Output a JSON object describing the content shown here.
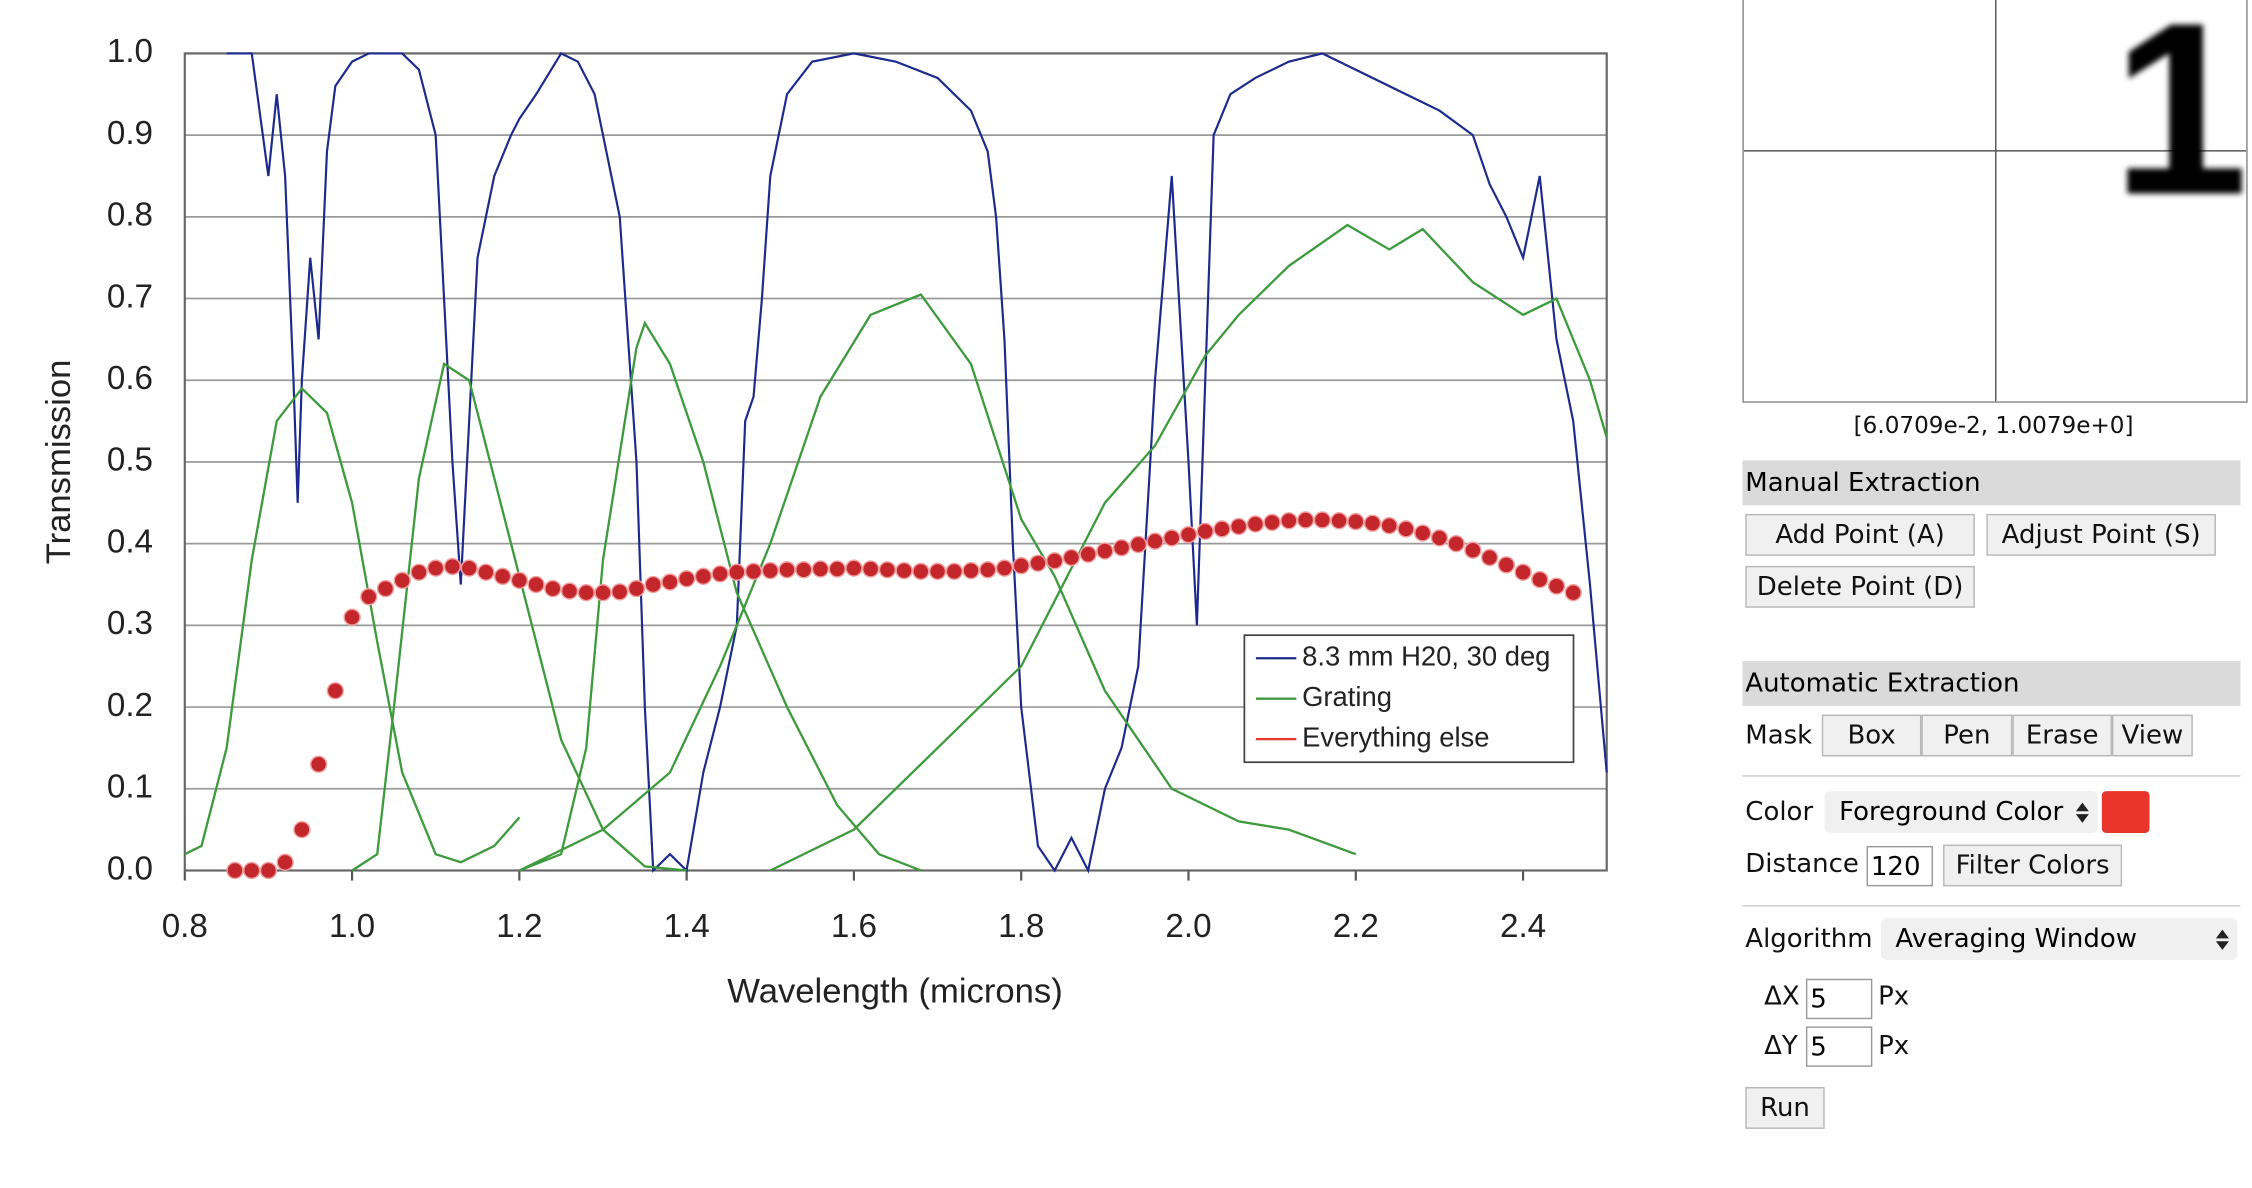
{
  "chart_data": {
    "type": "line",
    "xlabel": "Wavelength (microns)",
    "ylabel": "Transmission",
    "xlim": [
      0.8,
      2.5
    ],
    "ylim": [
      0,
      1
    ],
    "xticks": [
      0.8,
      {
        "value": 1,
        "label": "1.0"
      },
      1.2,
      1.4,
      1.6,
      1.8,
      {
        "value": 2,
        "label": "2.0"
      },
      2.2,
      2.4
    ],
    "yticks": [
      {
        "value": 0,
        "label": "0.0"
      },
      0.1,
      0.2,
      0.3,
      0.4,
      0.5,
      0.6,
      0.7,
      0.8,
      0.9,
      {
        "value": 1,
        "label": "1.0"
      }
    ],
    "grid": true,
    "legend": "lower-right",
    "series": [
      {
        "name": "8.3 mm H20, 30 deg",
        "color": "#1c2a8c",
        "mode": "line",
        "x": [
          0.85,
          0.88,
          0.9,
          0.91,
          0.92,
          0.93,
          0.935,
          0.94,
          0.95,
          0.96,
          0.97,
          0.98,
          1.0,
          1.02,
          1.06,
          1.08,
          1.1,
          1.11,
          1.12,
          1.13,
          1.14,
          1.15,
          1.17,
          1.19,
          1.2,
          1.22,
          1.25,
          1.27,
          1.29,
          1.3,
          1.32,
          1.33,
          1.34,
          1.35,
          1.36,
          1.38,
          1.4,
          1.42,
          1.44,
          1.46,
          1.47,
          1.48,
          1.49,
          1.5,
          1.52,
          1.55,
          1.6,
          1.65,
          1.7,
          1.74,
          1.76,
          1.77,
          1.78,
          1.79,
          1.8,
          1.82,
          1.84,
          1.86,
          1.88,
          1.9,
          1.92,
          1.94,
          1.96,
          1.98,
          2.0,
          2.01,
          2.02,
          2.03,
          2.05,
          2.08,
          2.12,
          2.16,
          2.2,
          2.26,
          2.3,
          2.34,
          2.36,
          2.38,
          2.4,
          2.42,
          2.44,
          2.46,
          2.48,
          2.5
        ],
        "values": [
          1,
          1,
          0.85,
          0.95,
          0.85,
          0.6,
          0.45,
          0.6,
          0.75,
          0.65,
          0.88,
          0.96,
          0.99,
          1,
          1,
          0.98,
          0.9,
          0.7,
          0.5,
          0.35,
          0.55,
          0.75,
          0.85,
          0.9,
          0.92,
          0.95,
          1,
          0.99,
          0.95,
          0.9,
          0.8,
          0.65,
          0.5,
          0.2,
          0,
          0.02,
          0,
          0.12,
          0.2,
          0.3,
          0.55,
          0.58,
          0.7,
          0.85,
          0.95,
          0.99,
          1,
          0.99,
          0.97,
          0.93,
          0.88,
          0.8,
          0.65,
          0.4,
          0.2,
          0.03,
          0,
          0.04,
          0,
          0.1,
          0.15,
          0.25,
          0.6,
          0.85,
          0.5,
          0.3,
          0.6,
          0.9,
          0.95,
          0.97,
          0.99,
          1,
          0.98,
          0.95,
          0.93,
          0.9,
          0.84,
          0.8,
          0.75,
          0.85,
          0.65,
          0.55,
          0.35,
          0.12
        ]
      },
      {
        "name": "Grating",
        "color": "#3d9a3d",
        "mode": "line",
        "x": [
          0.8,
          0.82,
          0.85,
          0.88,
          0.91,
          0.94,
          0.97,
          1.0,
          1.03,
          1.06,
          1.1,
          1.13,
          1.17,
          1.2,
          null,
          1.0,
          1.03,
          1.05,
          1.08,
          1.11,
          1.14,
          1.17,
          1.21,
          1.25,
          1.3,
          1.35,
          1.4,
          null,
          1.2,
          1.25,
          1.28,
          1.3,
          1.34,
          1.35,
          1.38,
          1.42,
          1.46,
          1.52,
          1.58,
          1.63,
          1.68,
          null,
          1.2,
          1.3,
          1.38,
          1.44,
          1.5,
          1.56,
          1.62,
          1.68,
          1.74,
          1.8,
          1.84,
          1.9,
          1.98,
          2.06,
          2.12,
          2.2,
          null,
          1.5,
          1.6,
          1.7,
          1.8,
          1.9,
          1.96,
          2.02,
          2.06,
          2.12,
          2.19,
          2.24,
          2.28,
          2.34,
          2.4,
          2.44,
          2.48,
          2.5
        ],
        "values": [
          0.02,
          0.03,
          0.15,
          0.38,
          0.55,
          0.59,
          0.56,
          0.45,
          0.28,
          0.12,
          0.02,
          0.01,
          0.03,
          0.065,
          null,
          0,
          0.02,
          0.2,
          0.48,
          0.62,
          0.6,
          0.48,
          0.32,
          0.16,
          0.05,
          0.005,
          0,
          null,
          0,
          0.02,
          0.15,
          0.38,
          0.64,
          0.67,
          0.62,
          0.5,
          0.34,
          0.2,
          0.08,
          0.02,
          0,
          null,
          0,
          0.05,
          0.12,
          0.25,
          0.4,
          0.58,
          0.68,
          0.705,
          0.62,
          0.43,
          0.36,
          0.22,
          0.1,
          0.06,
          0.05,
          0.02,
          null,
          0,
          0.05,
          0.15,
          0.25,
          0.45,
          0.52,
          0.63,
          0.68,
          0.74,
          0.79,
          0.76,
          0.785,
          0.72,
          0.68,
          0.7,
          0.6,
          0.53
        ]
      },
      {
        "name": "Everything else",
        "color": "#e8342a",
        "marker_color": "#c4272b",
        "mode": "markers",
        "x": [
          0.86,
          0.88,
          0.9,
          0.92,
          0.94,
          0.96,
          0.98,
          1.0,
          1.02,
          1.04,
          1.06,
          1.08,
          1.1,
          1.12,
          1.14,
          1.16,
          1.18,
          1.2,
          1.22,
          1.24,
          1.26,
          1.28,
          1.3,
          1.32,
          1.34,
          1.36,
          1.38,
          1.4,
          1.42,
          1.44,
          1.46,
          1.48,
          1.5,
          1.52,
          1.54,
          1.56,
          1.58,
          1.6,
          1.62,
          1.64,
          1.66,
          1.68,
          1.7,
          1.72,
          1.74,
          1.76,
          1.78,
          1.8,
          1.82,
          1.84,
          1.86,
          1.88,
          1.9,
          1.92,
          1.94,
          1.96,
          1.98,
          2.0,
          2.02,
          2.04,
          2.06,
          2.08,
          2.1,
          2.12,
          2.14,
          2.16,
          2.18,
          2.2,
          2.22,
          2.24,
          2.26,
          2.28,
          2.3,
          2.32,
          2.34,
          2.36,
          2.38,
          2.4,
          2.42,
          2.44,
          2.46
        ],
        "values": [
          0,
          0,
          0,
          0.01,
          0.05,
          0.13,
          0.22,
          0.31,
          0.335,
          0.345,
          0.355,
          0.365,
          0.37,
          0.372,
          0.37,
          0.365,
          0.36,
          0.355,
          0.35,
          0.345,
          0.342,
          0.34,
          0.34,
          0.341,
          0.345,
          0.35,
          0.353,
          0.357,
          0.36,
          0.363,
          0.365,
          0.366,
          0.367,
          0.368,
          0.368,
          0.369,
          0.369,
          0.37,
          0.369,
          0.368,
          0.367,
          0.366,
          0.366,
          0.366,
          0.367,
          0.368,
          0.37,
          0.373,
          0.376,
          0.379,
          0.383,
          0.387,
          0.391,
          0.395,
          0.399,
          0.403,
          0.407,
          0.411,
          0.415,
          0.418,
          0.421,
          0.424,
          0.426,
          0.428,
          0.429,
          0.429,
          0.428,
          0.427,
          0.425,
          0.422,
          0.418,
          0.413,
          0.407,
          0.4,
          0.392,
          0.383,
          0.374,
          0.365,
          0.356,
          0.348,
          0.34
        ]
      }
    ]
  },
  "zoom": {
    "glyph": "1",
    "cursor": "[6.0709e-2, 1.0079e+0]"
  },
  "manual_extraction": {
    "title": "Manual Extraction",
    "buttons": [
      "Add Point (A)",
      "Adjust Point (S)",
      "Delete Point (D)"
    ]
  },
  "automatic_extraction": {
    "title": "Automatic Extraction",
    "mask_label": "Mask",
    "mask_buttons": [
      "Box",
      "Pen",
      "Erase",
      "View"
    ],
    "color_label": "Color",
    "color_mode": "Foreground Color",
    "color_swatch": "#e8342a",
    "distance_label": "Distance",
    "distance": 120,
    "filter_button": "Filter Colors",
    "algorithm_label": "Algorithm",
    "algorithm": "Averaging Window",
    "dx_label": "ΔX",
    "dx": 5,
    "dy_label": "ΔY",
    "dy": 5,
    "unit": "Px",
    "run_button": "Run"
  }
}
